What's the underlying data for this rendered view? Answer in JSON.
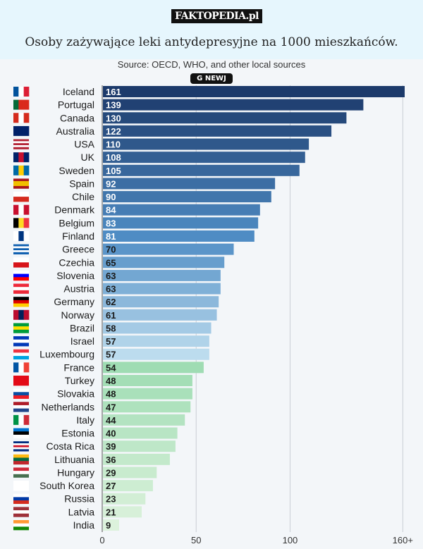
{
  "brand": "FAKTOPEDIA.pl",
  "title": "Osoby zażywające leki antydepresyjne na 1000 mieszkańców.",
  "chart_data": {
    "type": "bar",
    "orientation": "horizontal",
    "subtitle": "Source: OECD, WHO, and other local sources",
    "logo": "G NEWJ",
    "categories": [
      "Iceland",
      "Portugal",
      "Canada",
      "Australia",
      "USA",
      "UK",
      "Sweden",
      "Spain",
      "Chile",
      "Denmark",
      "Belgium",
      "Finland",
      "Greece",
      "Czechia",
      "Slovenia",
      "Austria",
      "Germany",
      "Norway",
      "Brazil",
      "Israel",
      "Luxembourg",
      "France",
      "Turkey",
      "Slovakia",
      "Netherlands",
      "Italy",
      "Estonia",
      "Costa Rica",
      "Lithuania",
      "Hungary",
      "South Korea",
      "Russia",
      "Latvia",
      "India"
    ],
    "values": [
      161,
      139,
      130,
      122,
      110,
      108,
      105,
      92,
      90,
      84,
      83,
      81,
      70,
      65,
      63,
      63,
      62,
      61,
      58,
      57,
      57,
      54,
      48,
      48,
      47,
      44,
      40,
      39,
      36,
      29,
      27,
      23,
      21,
      9
    ],
    "xlim": [
      0,
      161
    ],
    "xticks": [
      {
        "value": 0,
        "label": "0"
      },
      {
        "value": 50,
        "label": "50"
      },
      {
        "value": 100,
        "label": "100"
      },
      {
        "value": 160,
        "label": "160+"
      }
    ],
    "grid": true,
    "colors": {
      "dark": "#1c3a6b",
      "mid": "#4f8cc4",
      "light_blue": "#bcdcee",
      "green": "#9fdcb3",
      "pale_green": "#dcf2dc"
    },
    "flags": [
      [
        "v",
        "#02529c",
        "#fff",
        "#dc1e35"
      ],
      [
        "v",
        "#046a38",
        "#da291c",
        "#da291c"
      ],
      [
        "v",
        "#d52b1e",
        "#fff",
        "#d52b1e"
      ],
      [
        "v",
        "#012169",
        "#012169",
        "#012169"
      ],
      [
        "h",
        "#b22234",
        "#fff",
        "#b22234",
        "#fff",
        "#b22234"
      ],
      [
        "v",
        "#012169",
        "#c8102e",
        "#012169"
      ],
      [
        "v",
        "#006aa7",
        "#fecc02",
        "#006aa7"
      ],
      [
        "h",
        "#aa151b",
        "#f1bf00",
        "#f1bf00",
        "#aa151b"
      ],
      [
        "h",
        "#fff",
        "#d52b1e"
      ],
      [
        "v",
        "#c8102e",
        "#fff",
        "#c8102e"
      ],
      [
        "v",
        "#000",
        "#fdda24",
        "#ef3340"
      ],
      [
        "v",
        "#fff",
        "#003580",
        "#fff"
      ],
      [
        "h",
        "#0d5eaf",
        "#fff",
        "#0d5eaf",
        "#fff",
        "#0d5eaf"
      ],
      [
        "h",
        "#fff",
        "#d7141a"
      ],
      [
        "h",
        "#fff",
        "#0000ff",
        "#ff0000"
      ],
      [
        "h",
        "#ed2939",
        "#fff",
        "#ed2939"
      ],
      [
        "h",
        "#000",
        "#dd0000",
        "#ffce00"
      ],
      [
        "v",
        "#ba0c2f",
        "#00205b",
        "#ba0c2f"
      ],
      [
        "h",
        "#009c3b",
        "#ffdf00",
        "#009c3b"
      ],
      [
        "h",
        "#0038b8",
        "#fff",
        "#0038b8"
      ],
      [
        "h",
        "#ef3340",
        "#fff",
        "#00a3e0"
      ],
      [
        "v",
        "#0055a4",
        "#fff",
        "#ef4135"
      ],
      [
        "h",
        "#e30a17",
        "#e30a17"
      ],
      [
        "h",
        "#fff",
        "#0b4ea2",
        "#ee1c25"
      ],
      [
        "h",
        "#ae1c28",
        "#fff",
        "#21468b"
      ],
      [
        "v",
        "#009246",
        "#fff",
        "#ce2b37"
      ],
      [
        "h",
        "#0072ce",
        "#000",
        "#fff"
      ],
      [
        "h",
        "#002b7f",
        "#fff",
        "#ce1126",
        "#fff",
        "#002b7f"
      ],
      [
        "h",
        "#fdb913",
        "#006a44",
        "#c1272d"
      ],
      [
        "h",
        "#ce2939",
        "#fff",
        "#477050"
      ],
      [
        "h",
        "#fff",
        "#fff"
      ],
      [
        "h",
        "#fff",
        "#0039a6",
        "#d52b1e"
      ],
      [
        "h",
        "#9e3039",
        "#fff",
        "#9e3039"
      ],
      [
        "h",
        "#ff9933",
        "#fff",
        "#138808"
      ]
    ]
  }
}
